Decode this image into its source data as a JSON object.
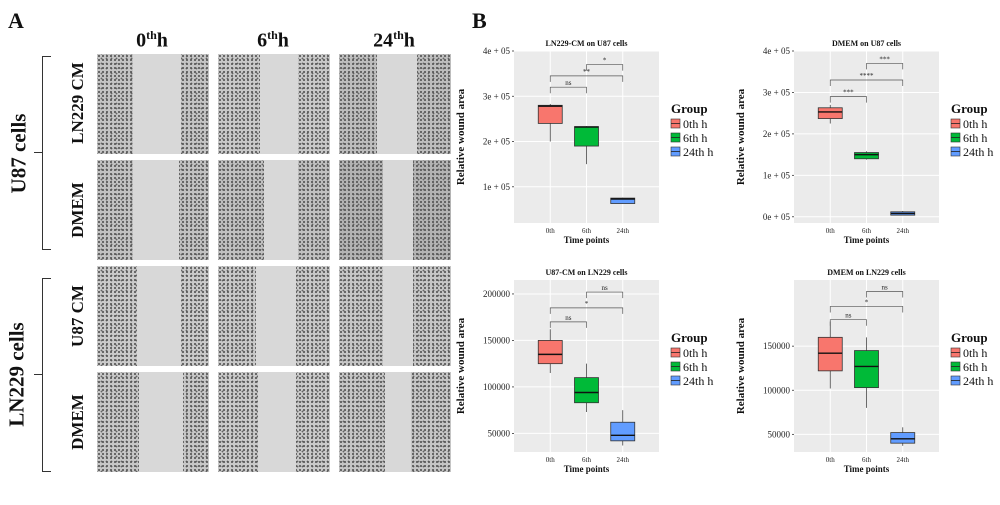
{
  "panel_a": {
    "letter": "A",
    "columns": [
      {
        "base": "0",
        "sup": "th",
        "suffix": "h"
      },
      {
        "base": "6",
        "sup": "th",
        "suffix": "h"
      },
      {
        "base": "24",
        "sup": "th",
        "suffix": "h"
      }
    ],
    "group_top": "U87 cells",
    "group_bottom": "LN229 cells",
    "rows": [
      "LN229 CM",
      "DMEM",
      "U87 CM",
      "DMEM"
    ]
  },
  "panel_b": {
    "letter": "B"
  },
  "colors": {
    "g0": "#F8766D",
    "g6": "#00BA38",
    "g24": "#619CFF",
    "panel_bg": "#EBEBEB",
    "grid": "#FFFFFF"
  },
  "chart_data": [
    {
      "type": "box",
      "title": "LN229-CM on U87 cells",
      "xlabel": "Time points",
      "ylabel": "Relative wound area",
      "categories": [
        "0th",
        "6th",
        "24th"
      ],
      "yticks": [
        100000,
        200000,
        300000,
        400000
      ],
      "ytick_labels": [
        "1e + 05",
        "2e + 05",
        "3e + 05",
        "4e + 05"
      ],
      "ylim": [
        20000,
        400000
      ],
      "boxes": [
        {
          "min": 200000,
          "q1": 240000,
          "median": 278000,
          "q3": 280000,
          "max": 283000
        },
        {
          "min": 150000,
          "q1": 190000,
          "median": 232000,
          "q3": 233000,
          "max": 234000
        },
        {
          "min": 63000,
          "q1": 63000,
          "median": 73000,
          "q3": 75000,
          "max": 76000
        }
      ],
      "brackets": [
        {
          "from": 0,
          "to": 1,
          "label": "ns",
          "y": 320000
        },
        {
          "from": 0,
          "to": 2,
          "label": "**",
          "y": 345000
        },
        {
          "from": 1,
          "to": 2,
          "label": "*",
          "y": 370000
        }
      ],
      "legend": {
        "title": "Group",
        "labels": [
          "0th h",
          "6th h",
          "24th h"
        ]
      }
    },
    {
      "type": "box",
      "title": "DMEM on U87 cells",
      "xlabel": "Time points",
      "ylabel": "Relative wound area",
      "categories": [
        "0th",
        "6th",
        "24th"
      ],
      "yticks": [
        0,
        100000,
        200000,
        300000,
        400000
      ],
      "ytick_labels": [
        "0e + 05",
        "1e + 05",
        "2e + 05",
        "3e + 05",
        "4e + 05"
      ],
      "ylim": [
        -15000,
        400000
      ],
      "boxes": [
        {
          "min": 225000,
          "q1": 237000,
          "median": 253000,
          "q3": 263000,
          "max": 270000
        },
        {
          "min": 138000,
          "q1": 140000,
          "median": 150000,
          "q3": 155000,
          "max": 158000
        },
        {
          "min": 3000,
          "q1": 4000,
          "median": 8000,
          "q3": 12000,
          "max": 14000
        }
      ],
      "brackets": [
        {
          "from": 0,
          "to": 1,
          "label": "***",
          "y": 290000
        },
        {
          "from": 0,
          "to": 2,
          "label": "****",
          "y": 330000
        },
        {
          "from": 1,
          "to": 2,
          "label": "***",
          "y": 370000
        }
      ],
      "legend": {
        "title": "Group",
        "labels": [
          "0th h",
          "6th h",
          "24th h"
        ]
      }
    },
    {
      "type": "box",
      "title": "U87-CM on LN229 cells",
      "xlabel": "Time points",
      "ylabel": "Relative wound area",
      "categories": [
        "0th",
        "6th",
        "24th"
      ],
      "yticks": [
        50000,
        100000,
        150000,
        200000
      ],
      "ytick_labels": [
        "50000",
        "100000",
        "150000",
        "200000"
      ],
      "ylim": [
        30000,
        215000
      ],
      "boxes": [
        {
          "min": 115000,
          "q1": 125000,
          "median": 135000,
          "q3": 150000,
          "max": 162000
        },
        {
          "min": 73000,
          "q1": 83000,
          "median": 94000,
          "q3": 110000,
          "max": 125000
        },
        {
          "min": 37000,
          "q1": 42000,
          "median": 48000,
          "q3": 62000,
          "max": 75000
        }
      ],
      "brackets": [
        {
          "from": 0,
          "to": 1,
          "label": "ns",
          "y": 170000
        },
        {
          "from": 0,
          "to": 2,
          "label": "*",
          "y": 185000
        },
        {
          "from": 1,
          "to": 2,
          "label": "ns",
          "y": 202000
        }
      ],
      "legend": {
        "title": "Group",
        "labels": [
          "0th h",
          "6th h",
          "24th h"
        ]
      }
    },
    {
      "type": "box",
      "title": "DMEM on LN229 cells",
      "xlabel": "Time points",
      "ylabel": "Relative wound area",
      "categories": [
        "0th",
        "6th",
        "24th"
      ],
      "yticks": [
        50000,
        100000,
        150000
      ],
      "ytick_labels": [
        "50000",
        "100000",
        "150000"
      ],
      "ylim": [
        30000,
        225000
      ],
      "boxes": [
        {
          "min": 102000,
          "q1": 122000,
          "median": 142000,
          "q3": 160000,
          "max": 178000
        },
        {
          "min": 80000,
          "q1": 103000,
          "median": 127000,
          "q3": 145000,
          "max": 160000
        },
        {
          "min": 37000,
          "q1": 40000,
          "median": 45000,
          "q3": 52000,
          "max": 58000
        }
      ],
      "brackets": [
        {
          "from": 0,
          "to": 1,
          "label": "ns",
          "y": 180000
        },
        {
          "from": 0,
          "to": 2,
          "label": "*",
          "y": 195000
        },
        {
          "from": 1,
          "to": 2,
          "label": "ns",
          "y": 212000
        }
      ],
      "legend": {
        "title": "Group",
        "labels": [
          "0th h",
          "6th h",
          "24th h"
        ]
      }
    }
  ]
}
